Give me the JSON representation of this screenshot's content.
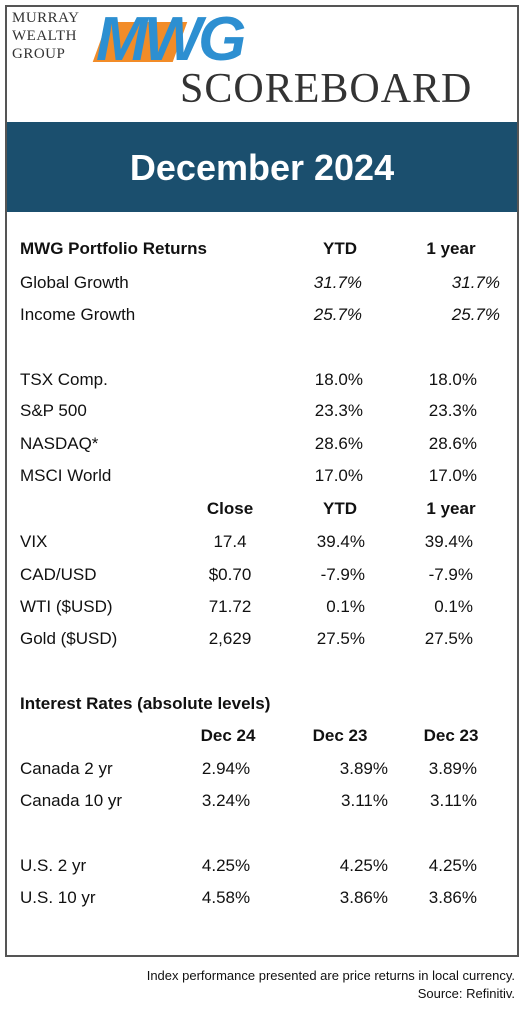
{
  "header": {
    "company": [
      "MURRAY",
      "WEALTH",
      "GROUP"
    ],
    "logo": "MWG",
    "title": "SCOREBOARD"
  },
  "banner": "December 2024",
  "portfolio": {
    "columns": [
      "MWG Portfolio Returns",
      "YTD",
      "1 year"
    ],
    "rows": [
      [
        "Global Growth",
        "31.7%",
        "31.7%"
      ],
      [
        "Income Growth",
        "25.7%",
        "25.7%"
      ]
    ]
  },
  "indices": {
    "rows": [
      [
        "TSX Comp.",
        "18.0%",
        "18.0%"
      ],
      [
        "S&P 500",
        "23.3%",
        "23.3%"
      ],
      [
        "NASDAQ*",
        "28.6%",
        "28.6%"
      ],
      [
        "MSCI World",
        "17.0%",
        "17.0%"
      ]
    ]
  },
  "markets": {
    "columns": [
      "Close",
      "YTD",
      "1 year"
    ],
    "rows": [
      [
        "VIX",
        "17.4",
        "39.4%",
        "39.4%"
      ],
      [
        "CAD/USD",
        "$0.70",
        "-7.9%",
        "-7.9%"
      ],
      [
        "WTI ($USD)",
        "71.72",
        "0.1%",
        "0.1%"
      ],
      [
        "Gold ($USD)",
        "2,629",
        "27.5%",
        "27.5%"
      ]
    ]
  },
  "rates": {
    "title": "Interest Rates (absolute levels)",
    "columns": [
      "Dec 24",
      "Dec 23",
      "Dec 23"
    ],
    "rows": [
      [
        "Canada 2 yr",
        "2.94%",
        "3.89%",
        "3.89%"
      ],
      [
        "Canada 10 yr",
        "3.24%",
        "3.11%",
        "3.11%"
      ],
      [
        "U.S. 2 yr",
        "4.25%",
        "4.25%",
        "4.25%"
      ],
      [
        "U.S. 10 yr",
        "4.58%",
        "3.86%",
        "3.86%"
      ]
    ]
  },
  "footer": [
    "Index performance presented are price returns in local currency.",
    "Source: Refinitiv."
  ]
}
